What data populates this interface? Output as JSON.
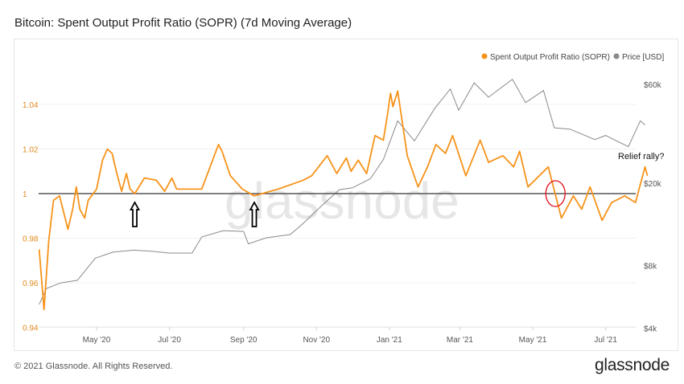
{
  "header": {
    "title": "Bitcoin: Spent Output Profit Ratio (SOPR) (7d Moving Average)"
  },
  "footer": {
    "copyright": "© 2021 Glassnode. All Rights Reserved.",
    "brand": "glassnode"
  },
  "watermark": "glassnode",
  "colors": {
    "sopr": "#f7931a",
    "price": "#8a8a8a",
    "baseline": "#555555",
    "annotation_circle": "#e0101a",
    "tick_left": "#e08a1e"
  },
  "chart_data": {
    "type": "line",
    "title": "Bitcoin: Spent Output Profit Ratio (SOPR) (7d Moving Average)",
    "legend": {
      "placement": "top-right",
      "entries": [
        "Spent Output Profit Ratio (SOPR)",
        "Price [USD]"
      ]
    },
    "x_ticks": [
      {
        "label": "May '20",
        "date": "2020-05-01"
      },
      {
        "label": "Jul '20",
        "date": "2020-07-01"
      },
      {
        "label": "Sep '20",
        "date": "2020-09-01"
      },
      {
        "label": "Nov '20",
        "date": "2020-11-01"
      },
      {
        "label": "Jan '21",
        "date": "2021-01-01"
      },
      {
        "label": "Mar '21",
        "date": "2021-03-01"
      },
      {
        "label": "May '21",
        "date": "2021-05-01"
      },
      {
        "label": "Jul '21",
        "date": "2021-07-01"
      }
    ],
    "y_left": {
      "range": [
        0.94,
        1.05
      ],
      "ticks": [
        "0.94",
        "0.96",
        "0.98",
        "1",
        "1.02",
        "1.04"
      ],
      "tick_values": [
        0.94,
        0.96,
        0.98,
        1,
        1.02,
        1.04
      ]
    },
    "y_right": {
      "scale": "log",
      "ticks": [
        "$4k",
        "$8k",
        "$20k",
        "$60k"
      ],
      "tick_values": [
        4000,
        8000,
        20000,
        60000
      ]
    },
    "baseline": 1,
    "grid": true,
    "series": [
      {
        "name": "Spent Output Profit Ratio (SOPR)",
        "axis": "left",
        "points": [
          [
            "2020-03-14",
            0.975
          ],
          [
            "2020-03-18",
            0.948
          ],
          [
            "2020-03-22",
            0.979
          ],
          [
            "2020-03-26",
            0.997
          ],
          [
            "2020-03-31",
            0.999
          ],
          [
            "2020-04-07",
            0.984
          ],
          [
            "2020-04-11",
            0.993
          ],
          [
            "2020-04-14",
            1.003
          ],
          [
            "2020-04-17",
            0.993
          ],
          [
            "2020-04-21",
            0.989
          ],
          [
            "2020-04-24",
            0.997
          ],
          [
            "2020-05-01",
            1.002
          ],
          [
            "2020-05-06",
            1.015
          ],
          [
            "2020-05-10",
            1.02
          ],
          [
            "2020-05-14",
            1.018
          ],
          [
            "2020-05-18",
            1.009
          ],
          [
            "2020-05-22",
            1.001
          ],
          [
            "2020-05-26",
            1.009
          ],
          [
            "2020-05-29",
            1.002
          ],
          [
            "2020-06-02",
            1.0
          ],
          [
            "2020-06-10",
            1.007
          ],
          [
            "2020-06-20",
            1.006
          ],
          [
            "2020-06-27",
            1.001
          ],
          [
            "2020-07-03",
            1.007
          ],
          [
            "2020-07-07",
            1.002
          ],
          [
            "2020-07-28",
            1.002
          ],
          [
            "2020-08-04",
            1.012
          ],
          [
            "2020-08-11",
            1.022
          ],
          [
            "2020-08-14",
            1.019
          ],
          [
            "2020-08-21",
            1.008
          ],
          [
            "2020-08-31",
            1.002
          ],
          [
            "2020-09-10",
            0.999
          ],
          [
            "2020-09-30",
            1.002
          ],
          [
            "2020-10-21",
            1.006
          ],
          [
            "2020-10-28",
            1.008
          ],
          [
            "2020-11-10",
            1.017
          ],
          [
            "2020-11-18",
            1.009
          ],
          [
            "2020-11-26",
            1.016
          ],
          [
            "2020-11-30",
            1.01
          ],
          [
            "2020-12-06",
            1.015
          ],
          [
            "2020-12-13",
            1.009
          ],
          [
            "2020-12-20",
            1.026
          ],
          [
            "2020-12-27",
            1.024
          ],
          [
            "2020-12-30",
            1.034
          ],
          [
            "2021-01-02",
            1.045
          ],
          [
            "2021-01-04",
            1.039
          ],
          [
            "2021-01-08",
            1.046
          ],
          [
            "2021-01-16",
            1.017
          ],
          [
            "2021-01-25",
            1.003
          ],
          [
            "2021-02-02",
            1.012
          ],
          [
            "2021-02-09",
            1.022
          ],
          [
            "2021-02-17",
            1.018
          ],
          [
            "2021-02-23",
            1.026
          ],
          [
            "2021-03-06",
            1.008
          ],
          [
            "2021-03-18",
            1.024
          ],
          [
            "2021-03-25",
            1.014
          ],
          [
            "2021-04-06",
            1.017
          ],
          [
            "2021-04-15",
            1.012
          ],
          [
            "2021-04-20",
            1.019
          ],
          [
            "2021-04-27",
            1.003
          ],
          [
            "2021-05-14",
            1.012
          ],
          [
            "2021-05-25",
            0.989
          ],
          [
            "2021-06-04",
            0.999
          ],
          [
            "2021-06-11",
            0.993
          ],
          [
            "2021-06-18",
            1.003
          ],
          [
            "2021-06-28",
            0.988
          ],
          [
            "2021-07-06",
            0.996
          ],
          [
            "2021-07-17",
            0.999
          ],
          [
            "2021-07-26",
            0.996
          ],
          [
            "2021-08-03",
            1.012
          ],
          [
            "2021-08-05",
            1.008
          ]
        ]
      },
      {
        "name": "Price [USD]",
        "axis": "right",
        "points": [
          [
            "2020-03-14",
            5200
          ],
          [
            "2020-03-20",
            6200
          ],
          [
            "2020-04-01",
            6600
          ],
          [
            "2020-04-15",
            6800
          ],
          [
            "2020-04-30",
            8700
          ],
          [
            "2020-05-15",
            9300
          ],
          [
            "2020-06-01",
            9500
          ],
          [
            "2020-06-15",
            9400
          ],
          [
            "2020-07-01",
            9200
          ],
          [
            "2020-07-20",
            9200
          ],
          [
            "2020-07-28",
            11000
          ],
          [
            "2020-08-15",
            11800
          ],
          [
            "2020-09-01",
            11700
          ],
          [
            "2020-09-05",
            10200
          ],
          [
            "2020-09-20",
            10900
          ],
          [
            "2020-10-10",
            11300
          ],
          [
            "2020-10-21",
            12800
          ],
          [
            "2020-11-05",
            15500
          ],
          [
            "2020-11-20",
            18600
          ],
          [
            "2020-12-01",
            19000
          ],
          [
            "2020-12-16",
            21000
          ],
          [
            "2020-12-27",
            26000
          ],
          [
            "2021-01-08",
            40000
          ],
          [
            "2021-01-22",
            32000
          ],
          [
            "2021-02-08",
            46000
          ],
          [
            "2021-02-21",
            57000
          ],
          [
            "2021-02-28",
            45000
          ],
          [
            "2021-03-13",
            61000
          ],
          [
            "2021-03-25",
            52000
          ],
          [
            "2021-04-14",
            63500
          ],
          [
            "2021-04-25",
            49000
          ],
          [
            "2021-05-10",
            56000
          ],
          [
            "2021-05-19",
            37000
          ],
          [
            "2021-06-01",
            36500
          ],
          [
            "2021-06-22",
            32500
          ],
          [
            "2021-07-01",
            34000
          ],
          [
            "2021-07-20",
            30000
          ],
          [
            "2021-07-30",
            40000
          ],
          [
            "2021-08-03",
            38200
          ]
        ]
      }
    ],
    "annotations": [
      {
        "type": "arrow-up",
        "date": "2020-06-02",
        "value": 1.0
      },
      {
        "type": "arrow-up",
        "date": "2020-09-10",
        "value": 0.999
      },
      {
        "type": "circle",
        "date": "2021-05-20",
        "value": 1.0
      },
      {
        "type": "text",
        "text": "Relief rally?"
      }
    ]
  }
}
